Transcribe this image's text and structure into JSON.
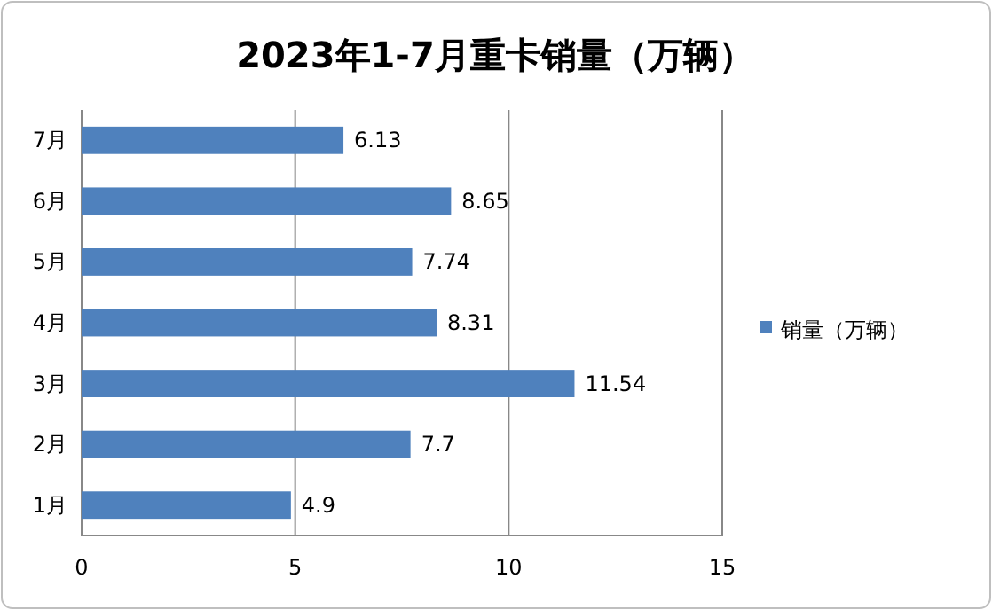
{
  "chart_data": {
    "type": "bar",
    "orientation": "horizontal",
    "title": "2023年1-7月重卡销量（万辆）",
    "categories": [
      "7月",
      "6月",
      "5月",
      "4月",
      "3月",
      "2月",
      "1月"
    ],
    "series": [
      {
        "name": "销量（万辆）",
        "color": "#4f81bd",
        "values": [
          6.13,
          8.65,
          7.74,
          8.31,
          11.54,
          7.7,
          4.9
        ]
      }
    ],
    "xlim": [
      0,
      15
    ],
    "xticks": [
      0,
      5,
      10,
      15
    ],
    "grid": "x",
    "legend": "right",
    "data_labels": true
  }
}
